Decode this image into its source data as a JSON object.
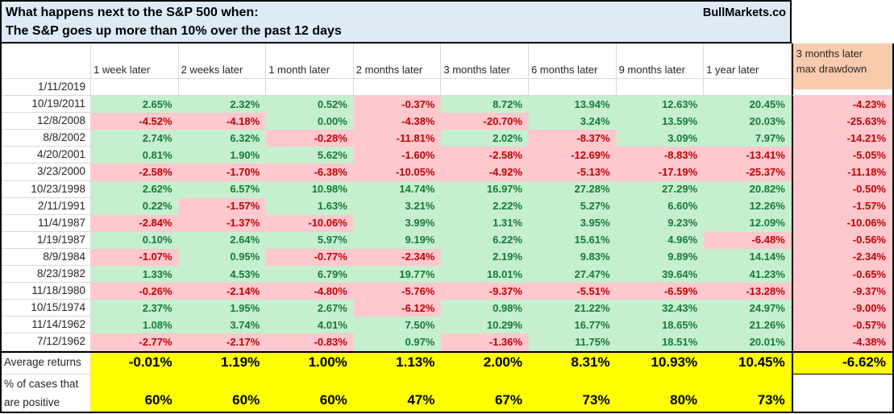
{
  "title": {
    "line1": "What happens next to the S&P 500 when:",
    "line2": "The S&P goes up more than 10% over the past 12 days",
    "brand": "BullMarkets.co"
  },
  "chart_data": {
    "type": "table",
    "title": "What happens next to the S&P 500 when: The S&P goes up more than 10% over the past 12 days",
    "columns": [
      "1 week later",
      "2 weeks later",
      "1 month later",
      "2 months later",
      "3 months later",
      "6 months later",
      "9 months later",
      "1 year later"
    ],
    "drawdown_header": {
      "line1": "3 months later",
      "line2": "max drawdown"
    },
    "rows": [
      {
        "date": "1/11/2019",
        "values": [
          "",
          "",
          "",
          "",
          "",
          "",
          "",
          ""
        ],
        "drawdown": ""
      },
      {
        "date": "10/19/2011",
        "values": [
          "2.65%",
          "2.32%",
          "0.52%",
          "-0.37%",
          "8.72%",
          "13.94%",
          "12.63%",
          "20.45%"
        ],
        "drawdown": "-4.23%"
      },
      {
        "date": "12/8/2008",
        "values": [
          "-4.52%",
          "-4.18%",
          "0.00%",
          "-4.38%",
          "-20.70%",
          "3.24%",
          "13.59%",
          "20.03%"
        ],
        "drawdown": "-25.63%"
      },
      {
        "date": "8/8/2002",
        "values": [
          "2.74%",
          "6.32%",
          "-0.28%",
          "-11.81%",
          "2.02%",
          "-8.37%",
          "3.09%",
          "7.97%"
        ],
        "drawdown": "-14.21%"
      },
      {
        "date": "4/20/2001",
        "values": [
          "0.81%",
          "1.90%",
          "5.62%",
          "-1.60%",
          "-2.58%",
          "-12.69%",
          "-8.83%",
          "-13.41%"
        ],
        "drawdown": "-5.05%"
      },
      {
        "date": "3/23/2000",
        "values": [
          "-2.58%",
          "-1.70%",
          "-6.38%",
          "-10.05%",
          "-4.92%",
          "-5.13%",
          "-17.19%",
          "-25.37%"
        ],
        "drawdown": "-11.18%"
      },
      {
        "date": "10/23/1998",
        "values": [
          "2.62%",
          "6.57%",
          "10.98%",
          "14.74%",
          "16.97%",
          "27.28%",
          "27.29%",
          "20.82%"
        ],
        "drawdown": "-0.50%"
      },
      {
        "date": "2/11/1991",
        "values": [
          "0.22%",
          "-1.57%",
          "1.63%",
          "3.21%",
          "2.22%",
          "5.27%",
          "6.60%",
          "12.26%"
        ],
        "drawdown": "-1.57%"
      },
      {
        "date": "11/4/1987",
        "values": [
          "-2.84%",
          "-1.37%",
          "-10.06%",
          "3.99%",
          "1.31%",
          "3.95%",
          "9.23%",
          "12.09%"
        ],
        "drawdown": "-10.06%"
      },
      {
        "date": "1/19/1987",
        "values": [
          "0.10%",
          "2.64%",
          "5.97%",
          "9.19%",
          "6.22%",
          "15.61%",
          "4.96%",
          "-6.48%"
        ],
        "drawdown": "-0.56%"
      },
      {
        "date": "8/9/1984",
        "values": [
          "-1.07%",
          "0.95%",
          "-0.77%",
          "-2.34%",
          "2.19%",
          "9.83%",
          "9.89%",
          "14.14%"
        ],
        "drawdown": "-2.34%"
      },
      {
        "date": "8/23/1982",
        "values": [
          "1.33%",
          "4.53%",
          "6.79%",
          "19.77%",
          "18.01%",
          "27.47%",
          "39.64%",
          "41.23%"
        ],
        "drawdown": "-0.65%"
      },
      {
        "date": "11/18/1980",
        "values": [
          "-0.26%",
          "-2.14%",
          "-4.80%",
          "-5.76%",
          "-9.37%",
          "-5.51%",
          "-6.59%",
          "-13.28%"
        ],
        "drawdown": "-9.37%"
      },
      {
        "date": "10/15/1974",
        "values": [
          "2.37%",
          "1.95%",
          "2.67%",
          "-6.12%",
          "0.98%",
          "21.22%",
          "32.43%",
          "24.97%"
        ],
        "drawdown": "-9.00%"
      },
      {
        "date": "11/14/1962",
        "values": [
          "1.08%",
          "3.74%",
          "4.01%",
          "7.50%",
          "10.29%",
          "16.77%",
          "18.65%",
          "21.26%"
        ],
        "drawdown": "-0.57%"
      },
      {
        "date": "7/12/1962",
        "values": [
          "-2.77%",
          "-2.17%",
          "-0.83%",
          "0.97%",
          "-1.36%",
          "11.75%",
          "18.51%",
          "20.01%"
        ],
        "drawdown": "-4.38%"
      }
    ],
    "summary": {
      "avg_label": "Average returns",
      "avg_values": [
        "-0.01%",
        "1.19%",
        "1.00%",
        "1.13%",
        "2.00%",
        "8.31%",
        "10.93%",
        "10.45%"
      ],
      "avg_drawdown": "-6.62%",
      "pct_label_line1": "% of cases that",
      "pct_label_line2": "are positive",
      "pct_values": [
        "60%",
        "60%",
        "60%",
        "47%",
        "67%",
        "73%",
        "80%",
        "73%"
      ],
      "pct_drawdown": ""
    }
  },
  "colors": {
    "title_bg": "#DEEAF6",
    "drawdown_header_bg": "#F8CBAD",
    "positive_bg": "#C6EFCE",
    "positive_text": "#157A3C",
    "negative_bg": "#FFC7CE",
    "negative_text": "#C00000",
    "summary_bg": "#FFFF00",
    "gridline": "#D9D9D9",
    "border": "#000000"
  }
}
